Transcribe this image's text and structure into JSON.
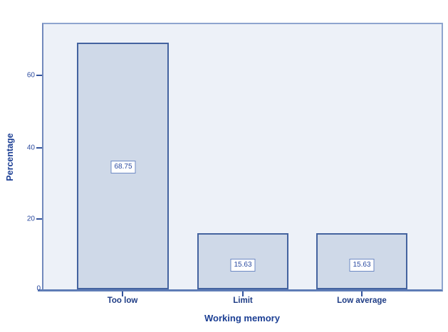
{
  "chart_data": {
    "type": "bar",
    "title": "",
    "categories": [
      "Too low",
      "Limit",
      "Low average"
    ],
    "values": [
      68.75,
      15.63,
      15.63
    ],
    "value_labels": [
      "68.75",
      "15.63",
      "15.63"
    ],
    "xlabel": "Working memory",
    "ylabel": "Percentage",
    "yticks": [
      "0",
      "20",
      "40",
      "60"
    ],
    "ylim": [
      0,
      74
    ],
    "grid": false,
    "legend": false,
    "value_labels_boxed": true,
    "colors": {
      "plot_background": "#edf1f8",
      "bar_fill": "#cfd9e8",
      "bar_border": "#44639f",
      "frame_border": "#8ea5cf",
      "axis_line": "#5e7cb6",
      "tick_text": "#2b4a9e",
      "label_text": "#1c3f94"
    }
  }
}
